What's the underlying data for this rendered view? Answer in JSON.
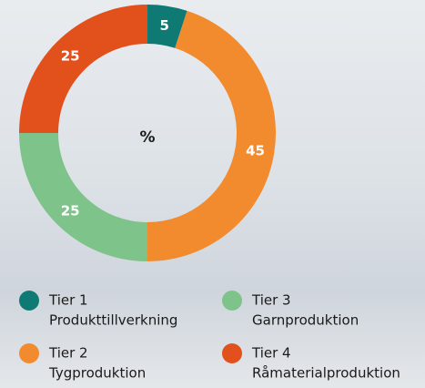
{
  "chart_data": {
    "type": "pie",
    "center_label": "%",
    "categories": [
      "Tier 1",
      "Tier 2",
      "Tier 3",
      "Tier 4"
    ],
    "descriptions": [
      "Produkttillverkning",
      "Tygproduktion",
      "Garnproduktion",
      "Råmaterialproduktion"
    ],
    "values": [
      5,
      45,
      25,
      25
    ],
    "colors": [
      "#0f7a73",
      "#f28a2e",
      "#7ec48a",
      "#e2501c"
    ]
  }
}
